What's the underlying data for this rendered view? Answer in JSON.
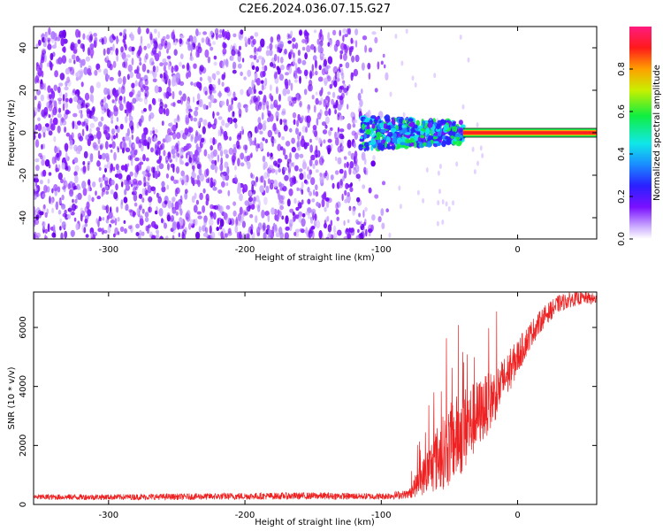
{
  "title": "C2E6.2024.036.07.15.G27",
  "colors": {
    "background": "#ffffff",
    "snr_line": "#ee2222",
    "noise_speckle": "#7010ee",
    "carrier": "#ff1f1f"
  },
  "colorbar": {
    "label": "Normalized spectral amplitude",
    "ticks": [
      "0.0",
      "0.2",
      "0.4",
      "0.6",
      "0.8"
    ],
    "range": [
      0.0,
      1.0
    ]
  },
  "chart_data": [
    {
      "type": "heatmap",
      "xlabel": "Height of straight line (km)",
      "ylabel": "Frequency (Hz)",
      "xlim": [
        -355,
        58
      ],
      "ylim": [
        -50,
        50
      ],
      "xticks": [
        "-300",
        "-200",
        "-100",
        "0"
      ],
      "yticks": [
        "-40",
        "-20",
        "0",
        "20",
        "40"
      ],
      "colormap": "rainbow (white -> purple -> blue -> cyan -> green -> yellow -> red -> magenta)",
      "regions": [
        {
          "description": "Scattered noise speckle",
          "x_range": [
            -355,
            -95
          ],
          "y_range": [
            -50,
            48
          ],
          "amplitude": 0.05
        },
        {
          "description": "Carrier emerging",
          "x_range": [
            -115,
            -40
          ],
          "y_center": 0,
          "y_spread": 8,
          "amplitude": 0.35
        },
        {
          "description": "Strong carrier line",
          "x_range": [
            -40,
            58
          ],
          "y_center": 0,
          "y_spread": 2,
          "amplitude": 0.95
        }
      ]
    },
    {
      "type": "line",
      "xlabel": "Height of straight line (km)",
      "ylabel": "SNR (10 * v/v)",
      "xlim": [
        -355,
        58
      ],
      "ylim": [
        0,
        7200
      ],
      "xticks": [
        "-300",
        "-200",
        "-100",
        "0"
      ],
      "yticks": [
        "0",
        "2000",
        "4000",
        "6000"
      ],
      "series": [
        {
          "x": [
            -355,
            -300,
            -250,
            -200,
            -150,
            -100,
            -80,
            -70,
            -60,
            -50,
            -40,
            -30,
            -20,
            -10,
            0,
            10,
            20,
            30,
            40,
            50,
            58
          ],
          "y": [
            250,
            250,
            260,
            280,
            290,
            270,
            350,
            900,
            1500,
            2000,
            2500,
            3000,
            3500,
            4200,
            5000,
            5800,
            6400,
            6800,
            6950,
            7000,
            6950
          ],
          "noise_band": [
            100,
            100,
            110,
            120,
            120,
            110,
            150,
            600,
            1100,
            1400,
            1500,
            1200,
            1000,
            800,
            600,
            450,
            350,
            300,
            250,
            200,
            200
          ]
        }
      ]
    }
  ]
}
